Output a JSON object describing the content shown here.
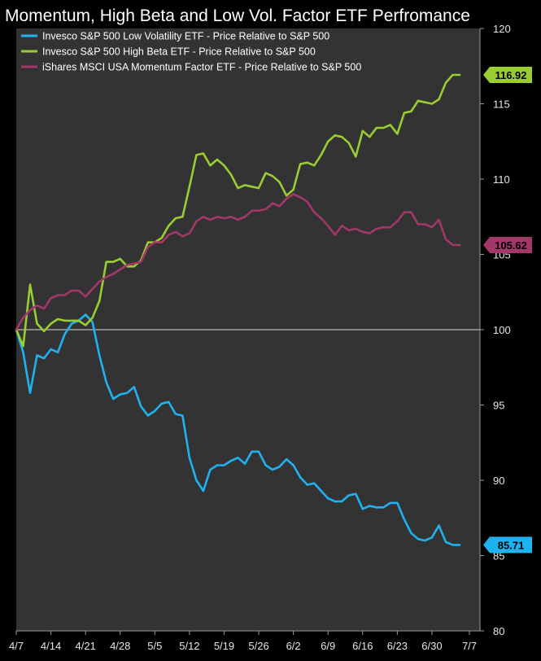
{
  "chart_data": {
    "type": "line",
    "title": "Momentum, High Beta and Low Vol. Factor ETF Perfromance",
    "x_ticks": [
      "4/7",
      "4/14",
      "4/21",
      "4/28",
      "5/5",
      "5/12",
      "5/19",
      "5/26",
      "6/2",
      "6/9",
      "6/16",
      "6/23",
      "6/30",
      "7/7"
    ],
    "ylim": [
      80,
      120
    ],
    "y_ticks": [
      80,
      85,
      90,
      95,
      100,
      105,
      110,
      115,
      120
    ],
    "reference_line": 100,
    "legend_position": "top-left",
    "series": [
      {
        "name": "Invesco S&P 500 Low Volatility ETF - Price Relative to S&P 500",
        "color": "#1fb2f0",
        "end_value": "85.71",
        "values": [
          [
            0,
            100
          ],
          [
            1,
            98.5
          ],
          [
            2,
            95.8
          ],
          [
            3,
            98.3
          ],
          [
            4,
            98.1
          ],
          [
            5,
            98.7
          ],
          [
            6,
            98.5
          ],
          [
            7,
            99.7
          ],
          [
            8,
            100.4
          ],
          [
            9,
            100.6
          ],
          [
            10,
            101
          ],
          [
            11,
            100.5
          ],
          [
            12,
            98.3
          ],
          [
            13,
            96.5
          ],
          [
            14,
            95.4
          ],
          [
            15,
            95.7
          ],
          [
            16,
            95.8
          ],
          [
            17,
            96.2
          ],
          [
            18,
            94.9
          ],
          [
            19,
            94.3
          ],
          [
            20,
            94.6
          ],
          [
            21,
            95.1
          ],
          [
            22,
            95.2
          ],
          [
            23,
            94.4
          ],
          [
            24,
            94.3
          ],
          [
            25,
            91.5
          ],
          [
            26,
            90
          ],
          [
            27,
            89.3
          ],
          [
            28,
            90.7
          ],
          [
            29,
            91
          ],
          [
            30,
            91
          ],
          [
            31,
            91.3
          ],
          [
            32,
            91.5
          ],
          [
            33,
            91.1
          ],
          [
            34,
            91.9
          ],
          [
            35,
            91.9
          ],
          [
            36,
            91
          ],
          [
            37,
            90.7
          ],
          [
            38,
            90.9
          ],
          [
            39,
            91.4
          ],
          [
            40,
            91
          ],
          [
            41,
            90.2
          ],
          [
            42,
            89.7
          ],
          [
            43,
            89.8
          ],
          [
            44,
            89.3
          ],
          [
            45,
            88.8
          ],
          [
            46,
            88.6
          ],
          [
            47,
            88.6
          ],
          [
            48,
            89
          ],
          [
            49,
            89.1
          ],
          [
            50,
            88.1
          ],
          [
            51,
            88.3
          ],
          [
            52,
            88.2
          ],
          [
            53,
            88.2
          ],
          [
            54,
            88.5
          ],
          [
            55,
            88.5
          ],
          [
            56,
            87.4
          ],
          [
            57,
            86.5
          ],
          [
            58,
            86.1
          ],
          [
            59,
            86
          ],
          [
            60,
            86.2
          ],
          [
            61,
            87
          ],
          [
            62,
            85.9
          ],
          [
            63,
            85.71
          ],
          [
            64,
            85.71
          ]
        ]
      },
      {
        "name": "Invesco S&P 500 High Beta ETF - Price Relative to S&P 500",
        "color": "#9acd32",
        "end_value": "116.92",
        "values": [
          [
            0,
            100
          ],
          [
            1,
            98.9
          ],
          [
            2,
            103
          ],
          [
            3,
            100.4
          ],
          [
            4,
            99.9
          ],
          [
            5,
            100.4
          ],
          [
            6,
            100.7
          ],
          [
            7,
            100.6
          ],
          [
            8,
            100.6
          ],
          [
            9,
            100.6
          ],
          [
            10,
            100.3
          ],
          [
            11,
            100.8
          ],
          [
            12,
            101.9
          ],
          [
            13,
            104.5
          ],
          [
            14,
            104.5
          ],
          [
            15,
            104.7
          ],
          [
            16,
            104.2
          ],
          [
            17,
            104.2
          ],
          [
            18,
            104.6
          ],
          [
            19,
            105.8
          ],
          [
            20,
            105.8
          ],
          [
            21,
            106.1
          ],
          [
            22,
            106.9
          ],
          [
            23,
            107.4
          ],
          [
            24,
            107.5
          ],
          [
            25,
            109.5
          ],
          [
            26,
            111.6
          ],
          [
            27,
            111.7
          ],
          [
            28,
            110.9
          ],
          [
            29,
            111.3
          ],
          [
            30,
            110.9
          ],
          [
            31,
            110.3
          ],
          [
            32,
            109.4
          ],
          [
            33,
            109.6
          ],
          [
            34,
            109.5
          ],
          [
            35,
            109.4
          ],
          [
            36,
            110.4
          ],
          [
            37,
            110.2
          ],
          [
            38,
            109.8
          ],
          [
            39,
            108.9
          ],
          [
            40,
            109.3
          ],
          [
            41,
            111
          ],
          [
            42,
            111.1
          ],
          [
            43,
            110.9
          ],
          [
            44,
            111.6
          ],
          [
            45,
            112.5
          ],
          [
            46,
            112.9
          ],
          [
            47,
            112.8
          ],
          [
            48,
            112.4
          ],
          [
            49,
            111.5
          ],
          [
            50,
            113.2
          ],
          [
            51,
            112.8
          ],
          [
            52,
            113.4
          ],
          [
            53,
            113.4
          ],
          [
            54,
            113.6
          ],
          [
            55,
            113
          ],
          [
            56,
            114.4
          ],
          [
            57,
            114.5
          ],
          [
            58,
            115.2
          ],
          [
            59,
            115.1
          ],
          [
            60,
            115
          ],
          [
            61,
            115.3
          ],
          [
            62,
            116.4
          ],
          [
            63,
            116.92
          ],
          [
            64,
            116.92
          ]
        ]
      },
      {
        "name": "iShares MSCI USA Momentum Factor ETF - Price Relative to S&P 500",
        "color": "#a3376a",
        "end_value": "105.62",
        "values": [
          [
            0,
            100
          ],
          [
            1,
            100.8
          ],
          [
            2,
            101.3
          ],
          [
            3,
            101.6
          ],
          [
            4,
            101.4
          ],
          [
            5,
            102.1
          ],
          [
            6,
            102.3
          ],
          [
            7,
            102.3
          ],
          [
            8,
            102.6
          ],
          [
            9,
            102.6
          ],
          [
            10,
            102.2
          ],
          [
            11,
            102.7
          ],
          [
            12,
            103.2
          ],
          [
            13,
            103.5
          ],
          [
            14,
            103.7
          ],
          [
            15,
            104
          ],
          [
            16,
            104.3
          ],
          [
            17,
            104.4
          ],
          [
            18,
            104.5
          ],
          [
            19,
            105.5
          ],
          [
            20,
            105.8
          ],
          [
            21,
            105.8
          ],
          [
            22,
            106.3
          ],
          [
            23,
            106.5
          ],
          [
            24,
            106.2
          ],
          [
            25,
            106.4
          ],
          [
            26,
            107.2
          ],
          [
            27,
            107.5
          ],
          [
            28,
            107.3
          ],
          [
            29,
            107.5
          ],
          [
            30,
            107.4
          ],
          [
            31,
            107.5
          ],
          [
            32,
            107.3
          ],
          [
            33,
            107.5
          ],
          [
            34,
            107.9
          ],
          [
            35,
            107.9
          ],
          [
            36,
            108
          ],
          [
            37,
            108.4
          ],
          [
            38,
            108.2
          ],
          [
            39,
            108.7
          ],
          [
            40,
            109
          ],
          [
            41,
            108.8
          ],
          [
            42,
            108.5
          ],
          [
            43,
            107.8
          ],
          [
            44,
            107.4
          ],
          [
            45,
            106.9
          ],
          [
            46,
            106.3
          ],
          [
            47,
            106.9
          ],
          [
            48,
            106.6
          ],
          [
            49,
            106.7
          ],
          [
            50,
            106.5
          ],
          [
            51,
            106.4
          ],
          [
            52,
            106.7
          ],
          [
            53,
            106.8
          ],
          [
            54,
            106.8
          ],
          [
            55,
            107.2
          ],
          [
            56,
            107.8
          ],
          [
            57,
            107.8
          ],
          [
            58,
            107
          ],
          [
            59,
            107
          ],
          [
            60,
            106.8
          ],
          [
            61,
            107.3
          ],
          [
            62,
            106
          ],
          [
            63,
            105.62
          ],
          [
            64,
            105.62
          ]
        ]
      }
    ]
  }
}
